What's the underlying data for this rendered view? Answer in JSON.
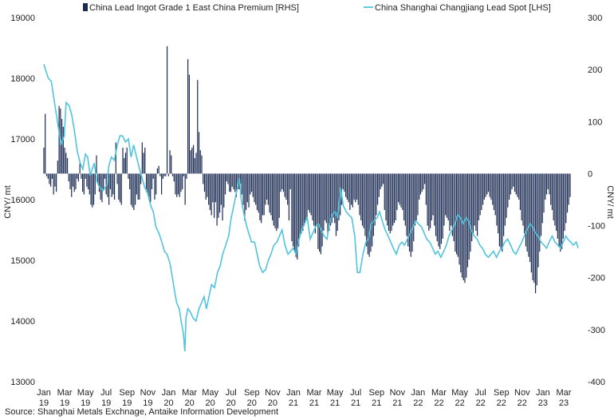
{
  "chart_data": {
    "type": "bar+line",
    "title": "",
    "ylabel_left": "CNY/ mt",
    "ylabel_right": "CNY/ mt",
    "ylim_left": [
      13000,
      19000
    ],
    "yticks_left": [
      13000,
      14000,
      15000,
      16000,
      17000,
      18000,
      19000
    ],
    "ylim_right": [
      -400,
      300
    ],
    "yticks_right": [
      -400,
      -300,
      -200,
      -100,
      0,
      100,
      200,
      300
    ],
    "grid": false,
    "legend_position": "top",
    "x_tick_labels": [
      [
        "Jan",
        "19"
      ],
      [
        "Mar",
        "19"
      ],
      [
        "May",
        "19"
      ],
      [
        "Jul",
        "19"
      ],
      [
        "Sep",
        "19"
      ],
      [
        "Nov",
        "19"
      ],
      [
        "Jan",
        "20"
      ],
      [
        "Mar",
        "20"
      ],
      [
        "May",
        "20"
      ],
      [
        "Jul",
        "20"
      ],
      [
        "Sep",
        "20"
      ],
      [
        "Nov",
        "20"
      ],
      [
        "Jan",
        "21"
      ],
      [
        "Mar",
        "21"
      ],
      [
        "May",
        "21"
      ],
      [
        "Jul",
        "21"
      ],
      [
        "Sep",
        "21"
      ],
      [
        "Nov",
        "21"
      ],
      [
        "Jan",
        "22"
      ],
      [
        "Mar",
        "22"
      ],
      [
        "May",
        "22"
      ],
      [
        "Jul",
        "22"
      ],
      [
        "Sep",
        "22"
      ],
      [
        "Nov",
        "22"
      ],
      [
        "Jan",
        "23"
      ],
      [
        "Mar",
        "23"
      ]
    ],
    "series": [
      {
        "name": "China Lead Ingot Grade 1 East China Premium [RHS]",
        "type": "bar",
        "axis": "right",
        "color": "#1a2a52",
        "values": [
          50,
          115,
          -5,
          -10,
          -20,
          -25,
          -10,
          -40,
          -25,
          -35,
          25,
          130,
          125,
          105,
          90,
          50,
          40,
          30,
          -15,
          -30,
          -45,
          -25,
          -35,
          -30,
          -10,
          -15,
          20,
          -10,
          -35,
          -40,
          -10,
          -25,
          -30,
          -40,
          -60,
          -65,
          -60,
          -40,
          35,
          -20,
          -35,
          -50,
          -55,
          -30,
          -10,
          -40,
          -45,
          -60,
          -30,
          -45,
          -40,
          -50,
          60,
          -20,
          -50,
          -55,
          -60,
          50,
          30,
          40,
          50,
          -10,
          -30,
          -60,
          -65,
          -70,
          -60,
          -40,
          -50,
          -50,
          -20,
          60,
          40,
          50,
          -30,
          -40,
          -50,
          -55,
          -30,
          -10,
          -50,
          -40,
          10,
          15,
          -5,
          -40,
          -10,
          -5,
          -5,
          245,
          -5,
          45,
          35,
          -5,
          -15,
          -40,
          -45,
          -40,
          -45,
          -35,
          -30,
          -5,
          -60,
          -10,
          220,
          190,
          45,
          50,
          55,
          30,
          40,
          180,
          80,
          45,
          35,
          -20,
          -35,
          -50,
          -45,
          -60,
          -70,
          -80,
          -55,
          -85,
          -55,
          -100,
          -85,
          -75,
          -60,
          -90,
          -65,
          -40,
          -15,
          -20,
          -35,
          -35,
          -25,
          -30,
          -35,
          -45,
          -30,
          -30,
          -20,
          -40,
          -60,
          -90,
          -70,
          -55,
          -65,
          -40,
          -35,
          -45,
          -55,
          -60,
          -70,
          -75,
          -90,
          -95,
          -80,
          -80,
          -60,
          -50,
          -60,
          -75,
          -80,
          -90,
          -100,
          -105,
          -110,
          -105,
          -85,
          -35,
          -30,
          -35,
          -45,
          -50,
          -60,
          -90,
          -30,
          -130,
          -140,
          -150,
          -160,
          -165,
          -140,
          -120,
          -115,
          -110,
          -100,
          -90,
          -85,
          -70,
          -75,
          -80,
          -90,
          -100,
          -115,
          -100,
          -145,
          -150,
          -155,
          -140,
          -110,
          -90,
          -95,
          -115,
          -110,
          -100,
          -95,
          -85,
          -95,
          -120,
          -110,
          -90,
          -80,
          -60,
          -30,
          -35,
          -45,
          -50,
          -55,
          -70,
          -60,
          -65,
          -50,
          -55,
          -50,
          -60,
          -80,
          -90,
          -100,
          -105,
          -120,
          -140,
          -155,
          -160,
          -150,
          -140,
          -120,
          -100,
          -80,
          -60,
          -45,
          -30,
          -25,
          -20,
          -70,
          -90,
          -100,
          -110,
          -115,
          -110,
          -100,
          -95,
          -90,
          -70,
          -55,
          -60,
          -65,
          -70,
          -90,
          -100,
          -120,
          -140,
          -150,
          -160,
          -150,
          -130,
          -100,
          -90,
          -80,
          -50,
          -40,
          -35,
          -30,
          -20,
          -60,
          -100,
          -110,
          -105,
          -90,
          -80,
          -100,
          -120,
          -130,
          -140,
          -145,
          -135,
          -125,
          -100,
          -80,
          -85,
          -90,
          -110,
          -100,
          -120,
          -130,
          -150,
          -155,
          -160,
          -175,
          -190,
          -200,
          -205,
          -210,
          -200,
          -180,
          -165,
          -150,
          -130,
          -115,
          -100,
          -110,
          -120,
          -90,
          -80,
          -70,
          -60,
          -50,
          -45,
          -40,
          -35,
          -45,
          -50,
          -60,
          -70,
          -80,
          -100,
          -115,
          -140,
          -145,
          -150,
          -120,
          -100,
          -85,
          -65,
          -50,
          -40,
          -30,
          -25,
          -35,
          -40,
          -45,
          -50,
          -70,
          -90,
          -100,
          -115,
          -140,
          -150,
          -160,
          -170,
          -190,
          -205,
          -210,
          -230,
          -215,
          -180,
          -150,
          -120,
          -95,
          -75,
          -50,
          -40,
          -30,
          -40,
          -60,
          -70,
          -90,
          -100,
          -110,
          -125,
          -140,
          -150,
          -145,
          -125,
          -110,
          -95,
          -75,
          -60,
          -45
        ]
      },
      {
        "name": "China Shanghai Changjiang Lead Spot [LHS]",
        "type": "line",
        "axis": "left",
        "color": "#4fc4dc",
        "points": [
          [
            0,
            18230
          ],
          [
            1.2,
            18000
          ],
          [
            2,
            17950
          ],
          [
            3,
            17550
          ],
          [
            4,
            17150
          ],
          [
            4.6,
            16900
          ],
          [
            5.5,
            17050
          ],
          [
            6,
            17600
          ],
          [
            6.8,
            17550
          ],
          [
            7.5,
            17400
          ],
          [
            8.2,
            17150
          ],
          [
            9,
            16800
          ],
          [
            9.8,
            16600
          ],
          [
            10.5,
            16500
          ],
          [
            11.2,
            16750
          ],
          [
            11.8,
            16700
          ],
          [
            12.5,
            16400
          ],
          [
            13,
            16500
          ],
          [
            13.6,
            16600
          ],
          [
            14.3,
            16300
          ],
          [
            15,
            16200
          ],
          [
            16,
            16150
          ],
          [
            17,
            16250
          ],
          [
            17.5,
            16550
          ],
          [
            18.2,
            16700
          ],
          [
            19,
            16650
          ],
          [
            19.8,
            16900
          ],
          [
            20.5,
            17050
          ],
          [
            21.2,
            17050
          ],
          [
            22,
            16950
          ],
          [
            22.8,
            17000
          ],
          [
            23.5,
            16700
          ],
          [
            24.2,
            16900
          ],
          [
            25,
            16700
          ],
          [
            25.8,
            16500
          ],
          [
            26.5,
            16350
          ],
          [
            27.2,
            16200
          ],
          [
            28,
            16100
          ],
          [
            28.8,
            15900
          ],
          [
            29.5,
            15800
          ],
          [
            30.2,
            15550
          ],
          [
            31,
            15450
          ],
          [
            31.8,
            15300
          ],
          [
            32.5,
            15150
          ],
          [
            33.2,
            15100
          ],
          [
            34,
            14950
          ],
          [
            34.7,
            14700
          ],
          [
            35.2,
            14500
          ],
          [
            35.8,
            14300
          ],
          [
            36.5,
            14200
          ],
          [
            37,
            14000
          ],
          [
            37.6,
            13800
          ],
          [
            38,
            13500
          ],
          [
            38.3,
            14050
          ],
          [
            38.8,
            14200
          ],
          [
            39.5,
            14150
          ],
          [
            40.2,
            14050
          ],
          [
            41,
            14000
          ],
          [
            41.8,
            14200
          ],
          [
            42.5,
            14300
          ],
          [
            43.2,
            14400
          ],
          [
            43.8,
            14200
          ],
          [
            44.5,
            14400
          ],
          [
            45.2,
            14600
          ],
          [
            46,
            14550
          ],
          [
            46.8,
            14800
          ],
          [
            47.5,
            14900
          ],
          [
            48.2,
            15100
          ],
          [
            49,
            15250
          ],
          [
            49.8,
            15400
          ],
          [
            50.5,
            15700
          ],
          [
            51.2,
            15900
          ],
          [
            52,
            16150
          ],
          [
            52.7,
            16350
          ],
          [
            53.2,
            16000
          ],
          [
            53.8,
            15800
          ],
          [
            54.5,
            15600
          ],
          [
            55.2,
            15450
          ],
          [
            56,
            15300
          ],
          [
            56.8,
            15300
          ],
          [
            57.5,
            15100
          ],
          [
            58.2,
            14900
          ],
          [
            59,
            14800
          ],
          [
            59.8,
            14850
          ],
          [
            60.5,
            15000
          ],
          [
            61.2,
            15100
          ],
          [
            62,
            15250
          ],
          [
            62.8,
            15300
          ],
          [
            63.5,
            15400
          ],
          [
            64.2,
            15500
          ],
          [
            65,
            15250
          ],
          [
            65.8,
            15100
          ],
          [
            66.5,
            15150
          ],
          [
            67.2,
            15200
          ],
          [
            68,
            15100
          ],
          [
            68.8,
            15350
          ],
          [
            69.5,
            15500
          ],
          [
            70.2,
            15600
          ],
          [
            71,
            15700
          ],
          [
            71.8,
            15350
          ],
          [
            72.5,
            15450
          ],
          [
            73.2,
            15550
          ],
          [
            74,
            15600
          ],
          [
            74.8,
            15500
          ],
          [
            75.5,
            15400
          ],
          [
            76.3,
            15350
          ],
          [
            77,
            15600
          ],
          [
            77.7,
            15750
          ],
          [
            78.5,
            15800
          ],
          [
            79.2,
            15700
          ],
          [
            80,
            16200
          ],
          [
            80.7,
            15900
          ],
          [
            81.5,
            15800
          ],
          [
            82.2,
            15750
          ],
          [
            83,
            15700
          ],
          [
            83.8,
            15400
          ],
          [
            84.5,
            14800
          ],
          [
            85.2,
            14800
          ],
          [
            86,
            15100
          ],
          [
            86.8,
            15300
          ],
          [
            87.5,
            15350
          ],
          [
            88.2,
            15600
          ],
          [
            89,
            15650
          ],
          [
            89.8,
            15700
          ],
          [
            90.5,
            15800
          ],
          [
            91.2,
            15650
          ],
          [
            92,
            15500
          ],
          [
            92.8,
            15400
          ],
          [
            93.5,
            15300
          ],
          [
            94.2,
            15200
          ],
          [
            95,
            15100
          ],
          [
            95.8,
            15250
          ],
          [
            96.5,
            15300
          ],
          [
            97.2,
            15250
          ],
          [
            98,
            15350
          ],
          [
            98.8,
            15450
          ],
          [
            99.5,
            15550
          ],
          [
            100.2,
            15650
          ],
          [
            101,
            15600
          ],
          [
            101.8,
            15550
          ],
          [
            102.5,
            15450
          ],
          [
            103.2,
            15350
          ],
          [
            104,
            15300
          ],
          [
            104.8,
            15200
          ],
          [
            105.5,
            15100
          ],
          [
            106.2,
            15150
          ],
          [
            107,
            15050
          ],
          [
            107.8,
            15150
          ],
          [
            108.5,
            15250
          ],
          [
            109.2,
            15400
          ],
          [
            110,
            15500
          ],
          [
            110.8,
            15600
          ],
          [
            111.5,
            15750
          ],
          [
            112.3,
            15700
          ],
          [
            113,
            15600
          ],
          [
            113.8,
            15700
          ],
          [
            114.5,
            15650
          ],
          [
            115.2,
            15500
          ],
          [
            116,
            15400
          ],
          [
            116.8,
            15350
          ],
          [
            117.5,
            15250
          ],
          [
            118.2,
            15200
          ],
          [
            119,
            15100
          ],
          [
            119.8,
            15050
          ],
          [
            120.5,
            15100
          ],
          [
            121.2,
            15150
          ],
          [
            122,
            15050
          ],
          [
            122.8,
            15150
          ],
          [
            123.5,
            15200
          ],
          [
            124.2,
            15300
          ],
          [
            125,
            15350
          ],
          [
            125.8,
            15250
          ],
          [
            126.5,
            15150
          ],
          [
            127.2,
            15100
          ],
          [
            128,
            15200
          ],
          [
            128.8,
            15300
          ],
          [
            129.5,
            15400
          ],
          [
            130.2,
            15500
          ],
          [
            131,
            15600
          ],
          [
            131.8,
            15550
          ],
          [
            132.5,
            15450
          ],
          [
            133.2,
            15400
          ],
          [
            134,
            15300
          ],
          [
            134.8,
            15250
          ],
          [
            135.5,
            15200
          ],
          [
            136.2,
            15300
          ],
          [
            137,
            15400
          ],
          [
            137.8,
            15300
          ],
          [
            138.5,
            15250
          ],
          [
            139.2,
            15200
          ],
          [
            140,
            15300
          ],
          [
            140.7,
            15400
          ],
          [
            141.2,
            15350
          ],
          [
            142,
            15300
          ],
          [
            142.7,
            15250
          ],
          [
            143.5,
            15300
          ],
          [
            144,
            15200
          ]
        ]
      }
    ],
    "source": "Source: Shanghai Metals Exchnage, Antaike Information Development"
  }
}
